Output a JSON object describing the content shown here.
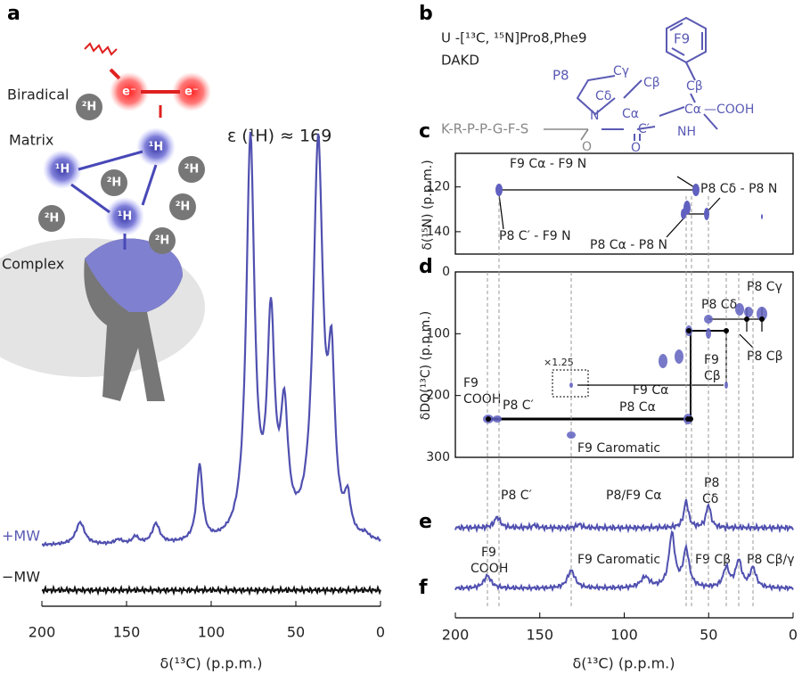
{
  "panel_labels": [
    "a",
    "b",
    "c",
    "d",
    "e",
    "f"
  ],
  "a": {
    "birad": "Biradical",
    "matrix": "Matrix",
    "complex": "Complex",
    "electron": "e⁻",
    "h1": "¹H",
    "h2": "²H",
    "enhancement": "ε (¹H) ≈ 169",
    "plus": "+MW",
    "minus": "−MW",
    "x_label": "δ(¹³C) (p.p.m.)",
    "xlim": [
      200,
      0
    ],
    "xticks": [
      200,
      150,
      100,
      50,
      0
    ]
  },
  "b": {
    "sample": "U -[¹³C, ¹⁵N]Pro8,Phe9",
    "complex": "DAKD",
    "f9": "F9",
    "p8": "P8",
    "cd": "Cδ",
    "cg": "Cγ",
    "cb": "Cβ",
    "n": "N",
    "ca": "Cα",
    "cooh": "—COOH",
    "cp": "C′",
    "nh": "NH",
    "o": "O",
    "peptide": "K-R-P-P-G-F-S"
  },
  "c": {
    "y_label": "δ(¹⁵N) (p.p.m.)",
    "ylim": [
      105,
      150
    ],
    "yticks": [
      120,
      140
    ],
    "labels": [
      "F9 Cα - F9 N",
      "P8 Cδ - P8 N",
      "P8 C′ - F9 N",
      "P8 Cα - P8 N"
    ]
  },
  "d": {
    "y_label": "δDQ(¹³C) (p.p.m.)",
    "ylim": [
      0,
      300
    ],
    "yticks": [
      0,
      100,
      200,
      300
    ],
    "labels": [
      "P8 Cδ",
      "P8 Cγ",
      "F9",
      "Cβ",
      "P8 Cβ",
      "×1.25",
      "F9",
      "COOH",
      "P8 C′",
      "F9 Cα",
      "P8 Cα",
      "F9 Caromatic"
    ]
  },
  "e": {
    "labels": [
      "P8 C′",
      "P8/F9 Cα",
      "P8",
      "Cδ"
    ]
  },
  "f": {
    "labels": [
      "F9",
      "COOH",
      "F9 Caromatic",
      "F9 Cβ",
      "P8 Cβ/γ"
    ],
    "x_label": "δ(¹³C) (p.p.m.)",
    "xlim": [
      200,
      0
    ],
    "xticks": [
      200,
      150,
      100,
      50,
      0
    ]
  }
}
